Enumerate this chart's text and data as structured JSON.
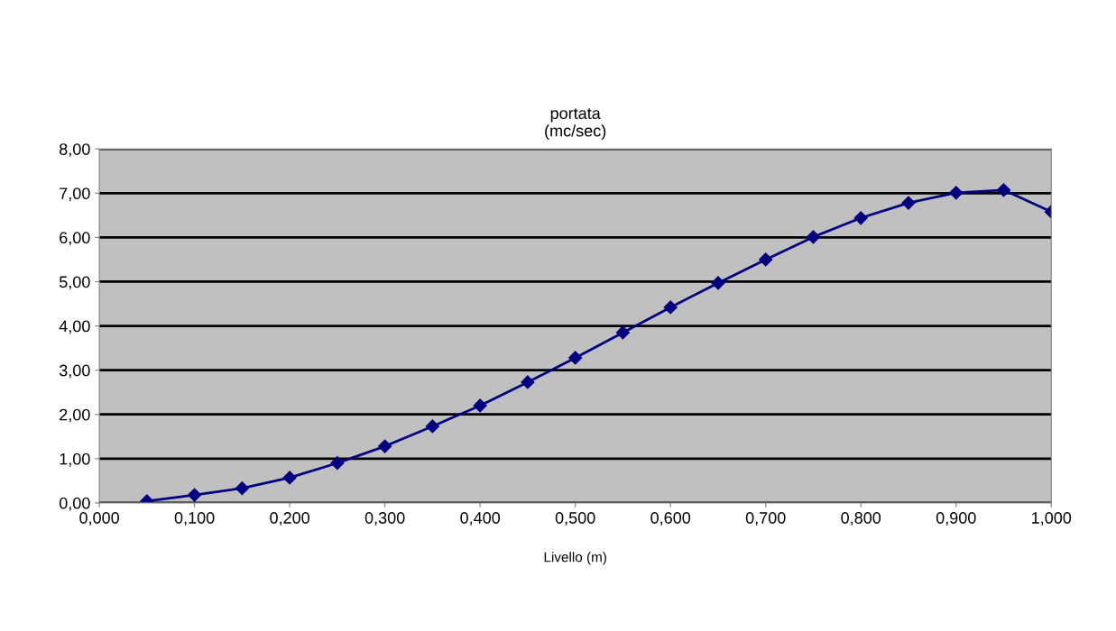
{
  "chart_data": {
    "type": "line",
    "title": "portata\n(mc/sec)",
    "xlabel": "Livello (m)",
    "x": [
      0.05,
      0.1,
      0.15,
      0.2,
      0.25,
      0.3,
      0.35,
      0.4,
      0.45,
      0.5,
      0.55,
      0.6,
      0.65,
      0.7,
      0.75,
      0.8,
      0.85,
      0.9,
      0.95,
      1.0
    ],
    "series": [
      {
        "color": "#000080",
        "values": [
          0.04,
          0.18,
          0.33,
          0.57,
          0.9,
          1.28,
          1.73,
          2.2,
          2.73,
          3.28,
          3.85,
          4.42,
          4.97,
          5.5,
          6.01,
          6.44,
          6.78,
          7.01,
          7.07,
          6.58
        ]
      }
    ],
    "xlim": [
      0,
      1
    ],
    "xticks": [
      {
        "value": 0,
        "label": "0,000"
      },
      {
        "value": 0.1,
        "label": "0,100"
      },
      {
        "value": 0.2,
        "label": "0,200"
      },
      {
        "value": 0.3,
        "label": "0,300"
      },
      {
        "value": 0.4,
        "label": "0,400"
      },
      {
        "value": 0.5,
        "label": "0,500"
      },
      {
        "value": 0.6,
        "label": "0,600"
      },
      {
        "value": 0.7,
        "label": "0,700"
      },
      {
        "value": 0.8,
        "label": "0,800"
      },
      {
        "value": 0.9,
        "label": "0,900"
      },
      {
        "value": 1.0,
        "label": "1,000"
      }
    ],
    "ylim": [
      0,
      8
    ],
    "yticks": [
      {
        "value": 0,
        "label": "0,00"
      },
      {
        "value": 1,
        "label": "1,00"
      },
      {
        "value": 2,
        "label": "2,00"
      },
      {
        "value": 3,
        "label": "3,00"
      },
      {
        "value": 4,
        "label": "4,00"
      },
      {
        "value": 5,
        "label": "5,00"
      },
      {
        "value": 6,
        "label": "6,00"
      },
      {
        "value": 7,
        "label": "7,00"
      },
      {
        "value": 8,
        "label": "8,00"
      }
    ],
    "grid": "y",
    "marker": "diamond",
    "line_style": "solid"
  }
}
